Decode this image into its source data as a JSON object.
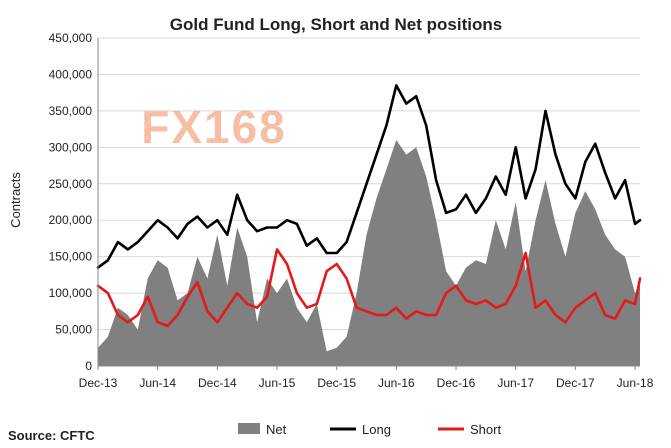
{
  "chart_data": {
    "type": "area+line",
    "title": "Gold Fund Long, Short and Net positions",
    "ylabel": "Contracts",
    "xlabel": "",
    "ylim": [
      0,
      450000
    ],
    "yticks": [
      0,
      50000,
      100000,
      150000,
      200000,
      250000,
      300000,
      350000,
      400000,
      450000
    ],
    "ytick_labels": [
      "0",
      "50,000",
      "100,000",
      "150,000",
      "200,000",
      "250,000",
      "300,000",
      "350,000",
      "400,000",
      "450,000"
    ],
    "x_tick_labels": [
      "Dec-13",
      "Jun-14",
      "Dec-14",
      "Jun-15",
      "Dec-15",
      "Jun-16",
      "Dec-16",
      "Jun-17",
      "Dec-17",
      "Jun-18"
    ],
    "x_tick_positions": [
      0,
      6,
      12,
      18,
      24,
      30,
      36,
      42,
      48,
      54
    ],
    "x_range": [
      0,
      54.5
    ],
    "grid": true,
    "legend_position": "bottom",
    "x": [
      0,
      1,
      2,
      3,
      4,
      5,
      6,
      7,
      8,
      9,
      10,
      11,
      12,
      13,
      14,
      15,
      16,
      17,
      18,
      19,
      20,
      21,
      22,
      23,
      24,
      25,
      26,
      27,
      28,
      29,
      30,
      31,
      32,
      33,
      34,
      35,
      36,
      37,
      38,
      39,
      40,
      41,
      42,
      43,
      44,
      45,
      46,
      47,
      48,
      49,
      50,
      51,
      52,
      53,
      54,
      54.5
    ],
    "series": [
      {
        "name": "Net",
        "style": "area",
        "color": "#808080",
        "values": [
          25000,
          40000,
          80000,
          70000,
          50000,
          120000,
          145000,
          135000,
          90000,
          100000,
          150000,
          120000,
          180000,
          110000,
          190000,
          150000,
          60000,
          120000,
          100000,
          120000,
          80000,
          60000,
          85000,
          20000,
          25000,
          40000,
          100000,
          180000,
          230000,
          270000,
          310000,
          290000,
          300000,
          260000,
          200000,
          130000,
          110000,
          135000,
          145000,
          140000,
          200000,
          160000,
          225000,
          130000,
          200000,
          255000,
          195000,
          150000,
          210000,
          240000,
          215000,
          180000,
          160000,
          150000,
          100000,
          110000
        ]
      },
      {
        "name": "Long",
        "style": "line",
        "color": "#000000",
        "values": [
          135000,
          145000,
          170000,
          160000,
          170000,
          185000,
          200000,
          190000,
          175000,
          195000,
          205000,
          190000,
          200000,
          180000,
          235000,
          200000,
          185000,
          190000,
          190000,
          200000,
          195000,
          165000,
          175000,
          155000,
          155000,
          170000,
          210000,
          250000,
          290000,
          330000,
          385000,
          360000,
          370000,
          330000,
          255000,
          210000,
          215000,
          235000,
          210000,
          230000,
          260000,
          235000,
          300000,
          230000,
          270000,
          350000,
          290000,
          250000,
          230000,
          280000,
          305000,
          265000,
          230000,
          255000,
          195000,
          200000
        ]
      },
      {
        "name": "Short",
        "style": "line",
        "color": "#e31a1c",
        "values": [
          110000,
          100000,
          70000,
          60000,
          70000,
          95000,
          60000,
          55000,
          70000,
          95000,
          115000,
          75000,
          60000,
          80000,
          100000,
          85000,
          80000,
          95000,
          160000,
          140000,
          100000,
          80000,
          85000,
          130000,
          140000,
          120000,
          80000,
          75000,
          70000,
          70000,
          80000,
          65000,
          75000,
          70000,
          70000,
          100000,
          110000,
          90000,
          85000,
          90000,
          80000,
          85000,
          110000,
          155000,
          80000,
          90000,
          70000,
          60000,
          80000,
          90000,
          100000,
          70000,
          65000,
          90000,
          85000,
          120000
        ]
      }
    ]
  },
  "source_label": "Source: CFTC",
  "watermark": "FX168"
}
